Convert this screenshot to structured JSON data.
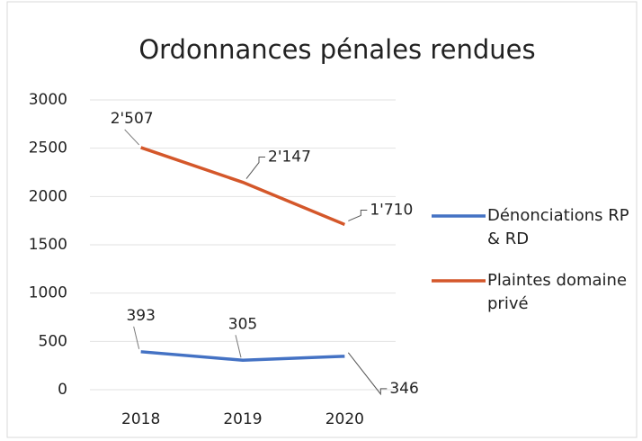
{
  "chart_data": {
    "type": "line",
    "title": "Ordonnances pénales rendues",
    "categories": [
      "2018",
      "2019",
      "2020"
    ],
    "series": [
      {
        "name": "Dénonciations RP & RD",
        "color": "#4472c4",
        "values": [
          393,
          305,
          346
        ]
      },
      {
        "name": "Plaintes domaine privé",
        "color": "#d4572a",
        "values": [
          2507,
          2147,
          1710
        ],
        "value_labels": [
          "2'507",
          "2'147",
          "1'710"
        ]
      }
    ],
    "ylim": [
      0,
      3000
    ],
    "yticks": [
      0,
      500,
      1000,
      1500,
      2000,
      2500,
      3000
    ],
    "grid": true,
    "legend": "right"
  }
}
